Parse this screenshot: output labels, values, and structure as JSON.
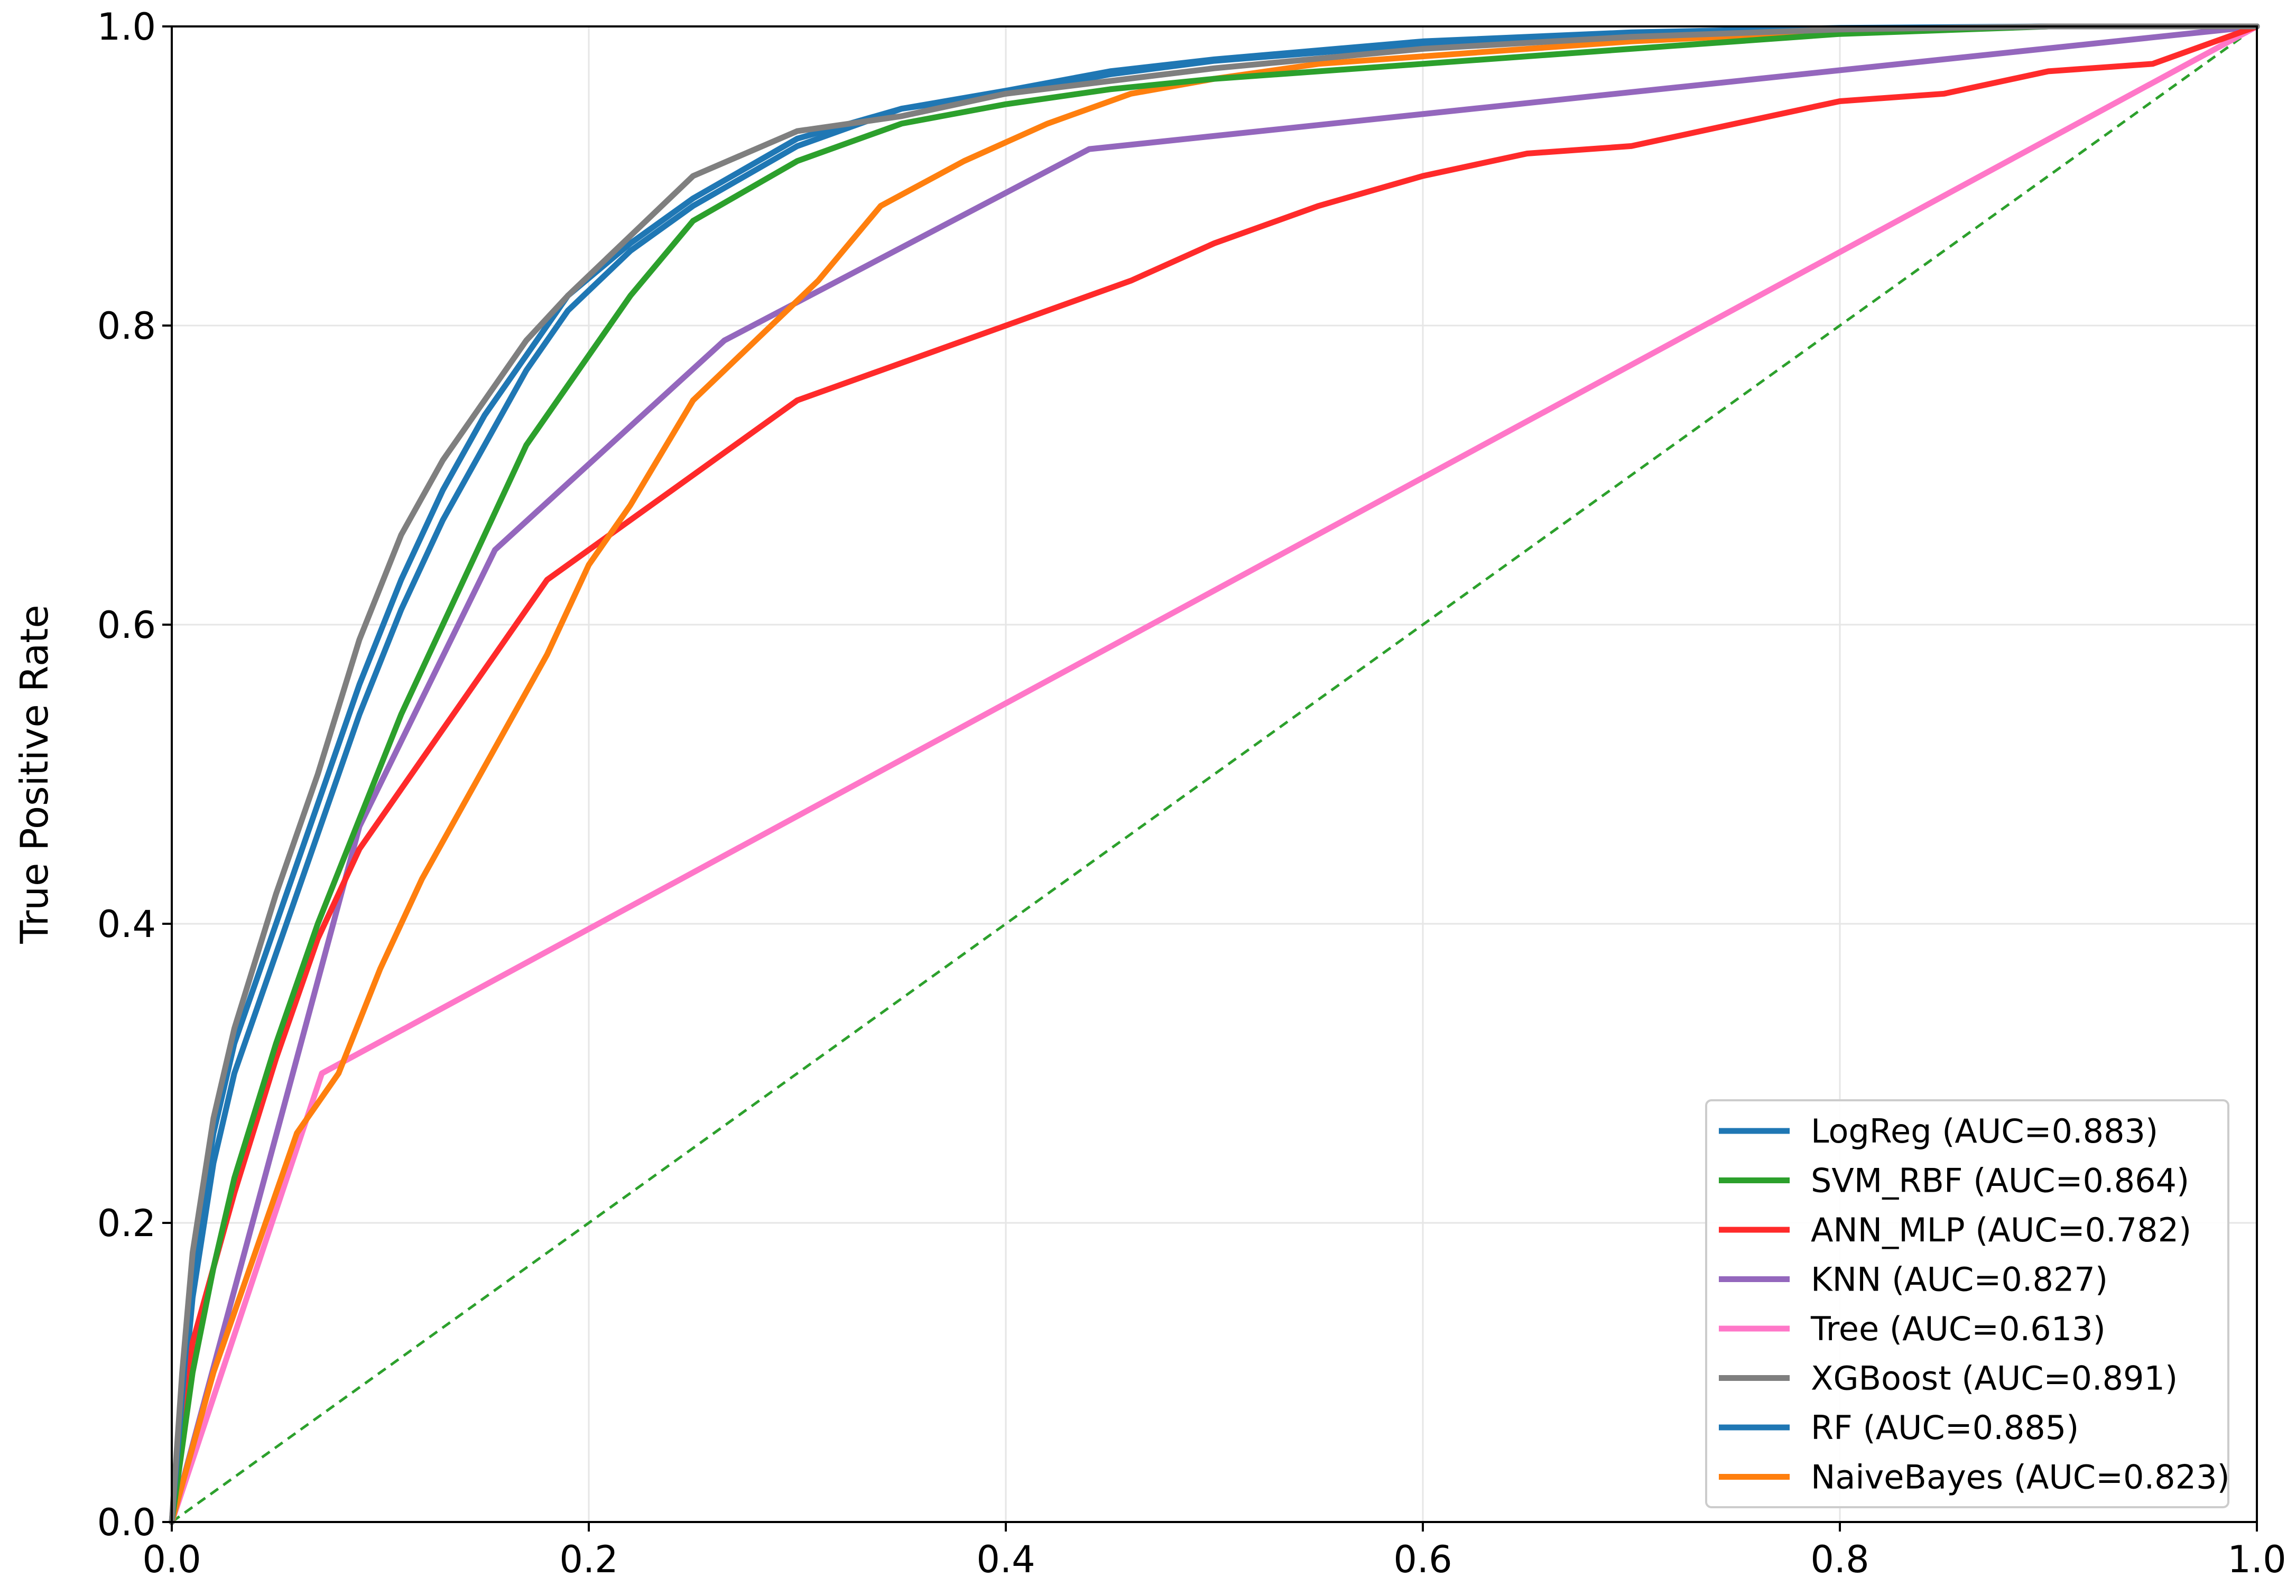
{
  "chart_data": {
    "type": "line",
    "title": "",
    "xlabel": "",
    "ylabel": "True Positive Rate",
    "xlim": [
      0,
      1
    ],
    "ylim": [
      0,
      1
    ],
    "grid": true,
    "legend_position": "lower-right",
    "x_ticks": [
      "0.0",
      "0.2",
      "0.4",
      "0.6",
      "0.8",
      "1.0"
    ],
    "y_ticks": [
      "0.0",
      "0.2",
      "0.4",
      "0.6",
      "0.8",
      "1.0"
    ],
    "diagonal": {
      "x": [
        0,
        1
      ],
      "y": [
        0,
        1
      ],
      "style": "dashed",
      "color": "#2ca02c"
    },
    "series": [
      {
        "name": "LogReg (AUC=0.883)",
        "color": "#1f77b4",
        "x": [
          0,
          0.01,
          0.02,
          0.03,
          0.05,
          0.07,
          0.09,
          0.11,
          0.13,
          0.15,
          0.17,
          0.19,
          0.22,
          0.25,
          0.3,
          0.35,
          0.4,
          0.45,
          0.5,
          0.6,
          0.7,
          0.8,
          0.9,
          1.0
        ],
        "y": [
          0,
          0.15,
          0.24,
          0.3,
          0.38,
          0.46,
          0.54,
          0.61,
          0.67,
          0.72,
          0.77,
          0.81,
          0.85,
          0.88,
          0.92,
          0.945,
          0.955,
          0.968,
          0.977,
          0.988,
          0.995,
          0.998,
          1.0,
          1.0
        ]
      },
      {
        "name": "SVM_RBF (AUC=0.864)",
        "color": "#2ca02c",
        "x": [
          0,
          0.01,
          0.02,
          0.03,
          0.05,
          0.07,
          0.09,
          0.11,
          0.13,
          0.15,
          0.17,
          0.19,
          0.22,
          0.25,
          0.3,
          0.35,
          0.4,
          0.45,
          0.5,
          0.6,
          0.7,
          0.8,
          0.9,
          1.0
        ],
        "y": [
          0,
          0.1,
          0.17,
          0.23,
          0.32,
          0.4,
          0.47,
          0.54,
          0.6,
          0.66,
          0.72,
          0.76,
          0.82,
          0.87,
          0.91,
          0.935,
          0.948,
          0.958,
          0.965,
          0.975,
          0.985,
          0.995,
          1.0,
          1.0
        ]
      },
      {
        "name": "ANN_MLP (AUC=0.782)",
        "color": "#ff2a2a",
        "x": [
          0,
          0.01,
          0.03,
          0.05,
          0.07,
          0.09,
          0.12,
          0.15,
          0.18,
          0.22,
          0.26,
          0.3,
          0.34,
          0.38,
          0.42,
          0.46,
          0.5,
          0.55,
          0.6,
          0.65,
          0.7,
          0.75,
          0.8,
          0.85,
          0.9,
          0.95,
          1.0
        ],
        "y": [
          0,
          0.12,
          0.22,
          0.31,
          0.39,
          0.45,
          0.51,
          0.57,
          0.63,
          0.67,
          0.71,
          0.75,
          0.77,
          0.79,
          0.81,
          0.83,
          0.855,
          0.88,
          0.9,
          0.915,
          0.92,
          0.935,
          0.95,
          0.955,
          0.97,
          0.975,
          1.0
        ]
      },
      {
        "name": "KNN (AUC=0.827)",
        "color": "#9467bd",
        "x": [
          0,
          0.09,
          0.155,
          0.265,
          0.44,
          1.0
        ],
        "y": [
          0,
          0.465,
          0.65,
          0.79,
          0.918,
          1.0
        ]
      },
      {
        "name": "Tree (AUC=0.613)",
        "color": "#ff77c8",
        "x": [
          0,
          0.072,
          1.0
        ],
        "y": [
          0,
          0.3,
          1.0
        ]
      },
      {
        "name": "XGBoost (AUC=0.891)",
        "color": "#7f7f7f",
        "x": [
          0,
          0.005,
          0.01,
          0.02,
          0.03,
          0.05,
          0.07,
          0.09,
          0.11,
          0.13,
          0.15,
          0.17,
          0.19,
          0.22,
          0.25,
          0.3,
          0.35,
          0.4,
          0.5,
          0.6,
          0.7,
          0.8,
          0.9,
          1.0
        ],
        "y": [
          0,
          0.1,
          0.18,
          0.27,
          0.33,
          0.42,
          0.5,
          0.59,
          0.66,
          0.71,
          0.75,
          0.79,
          0.82,
          0.86,
          0.9,
          0.93,
          0.94,
          0.955,
          0.972,
          0.985,
          0.993,
          0.998,
          1.0,
          1.0
        ]
      },
      {
        "name": "RF (AUC=0.885)",
        "color": "#1f77b4",
        "x": [
          0,
          0.01,
          0.02,
          0.03,
          0.05,
          0.07,
          0.09,
          0.11,
          0.13,
          0.15,
          0.17,
          0.19,
          0.22,
          0.25,
          0.3,
          0.35,
          0.4,
          0.45,
          0.5,
          0.6,
          0.7,
          0.8,
          0.9,
          1.0
        ],
        "y": [
          0,
          0.17,
          0.26,
          0.32,
          0.4,
          0.48,
          0.56,
          0.63,
          0.69,
          0.74,
          0.78,
          0.82,
          0.855,
          0.885,
          0.925,
          0.945,
          0.957,
          0.97,
          0.978,
          0.99,
          0.996,
          0.999,
          1.0,
          1.0
        ]
      },
      {
        "name": "NaiveBayes (AUC=0.823)",
        "color": "#ff7f0e",
        "x": [
          0,
          0.02,
          0.04,
          0.06,
          0.08,
          0.1,
          0.12,
          0.14,
          0.16,
          0.18,
          0.2,
          0.22,
          0.25,
          0.28,
          0.31,
          0.34,
          0.38,
          0.42,
          0.46,
          0.5,
          0.55,
          0.6,
          0.7,
          0.8,
          0.9,
          1.0
        ],
        "y": [
          0,
          0.1,
          0.18,
          0.26,
          0.3,
          0.37,
          0.43,
          0.48,
          0.53,
          0.58,
          0.64,
          0.68,
          0.75,
          0.79,
          0.83,
          0.88,
          0.91,
          0.935,
          0.955,
          0.965,
          0.975,
          0.98,
          0.99,
          0.997,
          1.0,
          1.0
        ]
      }
    ]
  }
}
